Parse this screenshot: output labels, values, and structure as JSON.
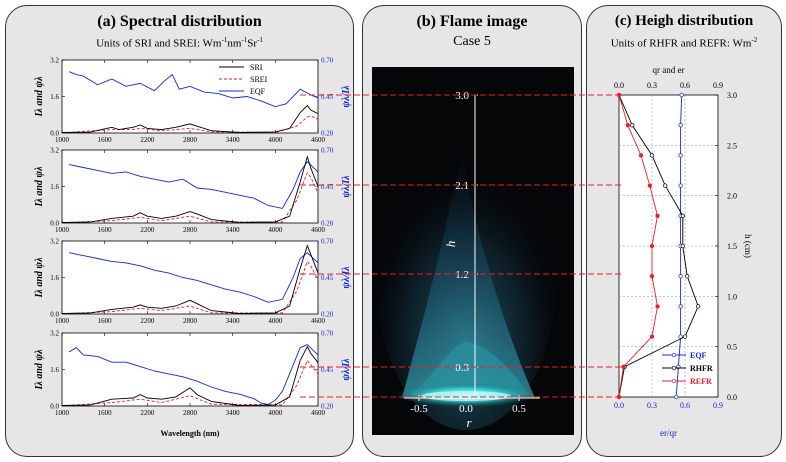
{
  "panel_a": {
    "title": "(a) Spectral distribution",
    "subtitle_parts": [
      "Units of SRI and SREI: Wm",
      "-1",
      "nm",
      "-1",
      "Sr",
      "-1"
    ],
    "ylabel_left": "Iλ and ψλ",
    "ylabel_right": "ψλ/Iλ",
    "xlabel": "Wavelength (nm)"
  },
  "panel_b": {
    "title": "(b) Flame image",
    "subtitle": "Case 5",
    "h_label": "h",
    "r_label": "r"
  },
  "panel_c": {
    "title": "(c) Heigh distribution",
    "subtitle_parts": [
      "Units of RHFR and REFR: Wm",
      "-2"
    ],
    "top_axis_label": "qr and er",
    "bottom_axis_label": "er/qr",
    "right_axis_label": "h (cm)"
  },
  "colors": {
    "sri": "#000000",
    "srei": "#e8202a",
    "eqf": "#1028d8",
    "refline": "#e8202a",
    "panel": "#e6e6e6",
    "flame": "#40d8d8"
  },
  "chart_data": [
    {
      "type": "line",
      "id": "spectral",
      "x_ticks": [
        1000,
        1600,
        2200,
        2800,
        3400,
        4000,
        4600
      ],
      "xlim": [
        1000,
        4600
      ],
      "ylim_left": [
        0,
        3.2
      ],
      "y_ticks_left": [
        "0.0",
        "1.6",
        "3.2"
      ],
      "ylim_right": [
        0.2,
        0.7
      ],
      "y_ticks_right": [
        "0.20",
        "0.45",
        "0.70"
      ],
      "legend": [
        "SRI",
        "SREI",
        "EQF"
      ],
      "subplots": [
        {
          "sri": [
            [
              1000,
              0.02
            ],
            [
              1400,
              0.04
            ],
            [
              1700,
              0.25
            ],
            [
              1800,
              0.15
            ],
            [
              2000,
              0.25
            ],
            [
              2100,
              0.35
            ],
            [
              2200,
              0.2
            ],
            [
              2400,
              0.15
            ],
            [
              2600,
              0.25
            ],
            [
              2800,
              0.4
            ],
            [
              2900,
              0.3
            ],
            [
              3100,
              0.1
            ],
            [
              3500,
              0.02
            ],
            [
              4000,
              0.05
            ],
            [
              4200,
              0.2
            ],
            [
              4350,
              0.9
            ],
            [
              4450,
              1.2
            ],
            [
              4500,
              1.0
            ],
            [
              4600,
              0.85
            ]
          ],
          "srei": [
            [
              1000,
              0.01
            ],
            [
              1700,
              0.15
            ],
            [
              2000,
              0.15
            ],
            [
              2100,
              0.2
            ],
            [
              2400,
              0.1
            ],
            [
              2800,
              0.2
            ],
            [
              3100,
              0.05
            ],
            [
              4000,
              0.02
            ],
            [
              4300,
              0.3
            ],
            [
              4450,
              0.7
            ],
            [
              4500,
              0.75
            ],
            [
              4600,
              0.6
            ]
          ],
          "eqf": [
            [
              1100,
              0.62
            ],
            [
              1200,
              0.6
            ],
            [
              1300,
              0.59
            ],
            [
              1500,
              0.53
            ],
            [
              1700,
              0.57
            ],
            [
              1900,
              0.52
            ],
            [
              2100,
              0.54
            ],
            [
              2300,
              0.49
            ],
            [
              2450,
              0.56
            ],
            [
              2550,
              0.6
            ],
            [
              2650,
              0.5
            ],
            [
              2800,
              0.52
            ],
            [
              3000,
              0.48
            ],
            [
              3200,
              0.47
            ],
            [
              3400,
              0.44
            ],
            [
              3600,
              0.45
            ],
            [
              3800,
              0.42
            ],
            [
              4000,
              0.38
            ],
            [
              4150,
              0.4
            ],
            [
              4350,
              0.5
            ],
            [
              4500,
              0.46
            ],
            [
              4600,
              0.44
            ]
          ]
        },
        {
          "sri": [
            [
              1000,
              0.02
            ],
            [
              1400,
              0.05
            ],
            [
              1700,
              0.2
            ],
            [
              2000,
              0.3
            ],
            [
              2100,
              0.45
            ],
            [
              2200,
              0.3
            ],
            [
              2400,
              0.2
            ],
            [
              2600,
              0.3
            ],
            [
              2800,
              0.5
            ],
            [
              2900,
              0.4
            ],
            [
              3100,
              0.15
            ],
            [
              3500,
              0.02
            ],
            [
              4000,
              0.05
            ],
            [
              4200,
              0.3
            ],
            [
              4350,
              1.8
            ],
            [
              4450,
              2.9
            ],
            [
              4500,
              2.4
            ],
            [
              4600,
              1.6
            ]
          ],
          "srei": [
            [
              1000,
              0.01
            ],
            [
              1700,
              0.1
            ],
            [
              2100,
              0.25
            ],
            [
              2400,
              0.1
            ],
            [
              2800,
              0.3
            ],
            [
              3100,
              0.05
            ],
            [
              4100,
              0.05
            ],
            [
              4300,
              1.0
            ],
            [
              4450,
              2.2
            ],
            [
              4500,
              2.0
            ],
            [
              4600,
              1.3
            ]
          ],
          "eqf": [
            [
              1100,
              0.6
            ],
            [
              1300,
              0.58
            ],
            [
              1500,
              0.56
            ],
            [
              1700,
              0.54
            ],
            [
              1900,
              0.55
            ],
            [
              2100,
              0.52
            ],
            [
              2300,
              0.5
            ],
            [
              2500,
              0.48
            ],
            [
              2700,
              0.5
            ],
            [
              2900,
              0.44
            ],
            [
              3100,
              0.43
            ],
            [
              3300,
              0.41
            ],
            [
              3500,
              0.39
            ],
            [
              3700,
              0.37
            ],
            [
              3900,
              0.32
            ],
            [
              4100,
              0.3
            ],
            [
              4250,
              0.43
            ],
            [
              4350,
              0.55
            ],
            [
              4450,
              0.62
            ],
            [
              4600,
              0.55
            ]
          ]
        },
        {
          "sri": [
            [
              1000,
              0.02
            ],
            [
              1400,
              0.05
            ],
            [
              1700,
              0.2
            ],
            [
              2000,
              0.3
            ],
            [
              2100,
              0.4
            ],
            [
              2200,
              0.3
            ],
            [
              2400,
              0.25
            ],
            [
              2600,
              0.35
            ],
            [
              2800,
              0.6
            ],
            [
              2900,
              0.45
            ],
            [
              3100,
              0.15
            ],
            [
              3500,
              0.02
            ],
            [
              4000,
              0.05
            ],
            [
              4200,
              0.35
            ],
            [
              4350,
              2.0
            ],
            [
              4450,
              3.0
            ],
            [
              4500,
              2.6
            ],
            [
              4600,
              1.8
            ]
          ],
          "srei": [
            [
              1000,
              0.01
            ],
            [
              1700,
              0.1
            ],
            [
              2100,
              0.25
            ],
            [
              2400,
              0.15
            ],
            [
              2800,
              0.35
            ],
            [
              3100,
              0.05
            ],
            [
              4100,
              0.05
            ],
            [
              4300,
              1.0
            ],
            [
              4450,
              2.3
            ],
            [
              4500,
              2.1
            ],
            [
              4600,
              1.5
            ]
          ],
          "eqf": [
            [
              1100,
              0.62
            ],
            [
              1300,
              0.6
            ],
            [
              1500,
              0.58
            ],
            [
              1700,
              0.56
            ],
            [
              1900,
              0.55
            ],
            [
              2100,
              0.53
            ],
            [
              2300,
              0.5
            ],
            [
              2500,
              0.48
            ],
            [
              2700,
              0.45
            ],
            [
              2900,
              0.43
            ],
            [
              3100,
              0.4
            ],
            [
              3300,
              0.37
            ],
            [
              3500,
              0.35
            ],
            [
              3700,
              0.32
            ],
            [
              3900,
              0.28
            ],
            [
              4100,
              0.3
            ],
            [
              4250,
              0.45
            ],
            [
              4350,
              0.58
            ],
            [
              4450,
              0.62
            ],
            [
              4600,
              0.55
            ]
          ]
        },
        {
          "sri": [
            [
              1000,
              0.02
            ],
            [
              1400,
              0.05
            ],
            [
              1700,
              0.3
            ],
            [
              2000,
              0.35
            ],
            [
              2100,
              0.5
            ],
            [
              2200,
              0.35
            ],
            [
              2400,
              0.3
            ],
            [
              2600,
              0.4
            ],
            [
              2800,
              0.8
            ],
            [
              2900,
              0.5
            ],
            [
              3100,
              0.2
            ],
            [
              3500,
              0.02
            ],
            [
              4000,
              0.05
            ],
            [
              4200,
              0.4
            ],
            [
              4350,
              2.0
            ],
            [
              4450,
              2.6
            ],
            [
              4500,
              2.3
            ],
            [
              4600,
              1.9
            ]
          ],
          "srei": [
            [
              1000,
              0.01
            ],
            [
              1700,
              0.15
            ],
            [
              2100,
              0.3
            ],
            [
              2400,
              0.15
            ],
            [
              2800,
              0.45
            ],
            [
              3100,
              0.08
            ],
            [
              4100,
              0.05
            ],
            [
              4300,
              0.9
            ],
            [
              4450,
              2.0
            ],
            [
              4500,
              1.8
            ],
            [
              4600,
              1.4
            ]
          ],
          "eqf": [
            [
              1100,
              0.57
            ],
            [
              1200,
              0.6
            ],
            [
              1300,
              0.55
            ],
            [
              1500,
              0.54
            ],
            [
              1700,
              0.5
            ],
            [
              1900,
              0.5
            ],
            [
              2100,
              0.47
            ],
            [
              2300,
              0.44
            ],
            [
              2500,
              0.42
            ],
            [
              2700,
              0.4
            ],
            [
              2900,
              0.37
            ],
            [
              3100,
              0.33
            ],
            [
              3300,
              0.3
            ],
            [
              3500,
              0.28
            ],
            [
              3700,
              0.25
            ],
            [
              3800,
              0.22
            ],
            [
              3900,
              0.21
            ],
            [
              4000,
              0.24
            ],
            [
              4100,
              0.3
            ],
            [
              4250,
              0.48
            ],
            [
              4350,
              0.6
            ],
            [
              4450,
              0.62
            ],
            [
              4600,
              0.55
            ]
          ]
        }
      ]
    },
    {
      "type": "line",
      "id": "height",
      "h_ticks": [
        "0.0",
        "0.5",
        "1.0",
        "1.5",
        "2.0",
        "2.5",
        "3.0"
      ],
      "hlim": [
        0,
        3
      ],
      "x_ticks": [
        "0.0",
        "0.3",
        "0.6",
        "0.9"
      ],
      "xlim": [
        0,
        0.9
      ],
      "legend": [
        "EQF",
        "RHFR",
        "REFR"
      ],
      "series": [
        {
          "name": "EQF",
          "points": [
            [
              0.52,
              0.0
            ],
            [
              0.54,
              0.3
            ],
            [
              0.56,
              0.6
            ],
            [
              0.56,
              0.9
            ],
            [
              0.56,
              1.2
            ],
            [
              0.56,
              1.5
            ],
            [
              0.56,
              1.8
            ],
            [
              0.56,
              2.1
            ],
            [
              0.56,
              2.4
            ],
            [
              0.56,
              2.7
            ],
            [
              0.57,
              3.0
            ]
          ]
        },
        {
          "name": "RHFR",
          "points": [
            [
              0.0,
              0.0
            ],
            [
              0.05,
              0.3
            ],
            [
              0.6,
              0.6
            ],
            [
              0.72,
              0.9
            ],
            [
              0.62,
              1.2
            ],
            [
              0.58,
              1.5
            ],
            [
              0.58,
              1.8
            ],
            [
              0.42,
              2.1
            ],
            [
              0.3,
              2.4
            ],
            [
              0.12,
              2.7
            ],
            [
              0.0,
              3.0
            ]
          ]
        },
        {
          "name": "REFR",
          "points": [
            [
              0.0,
              0.0
            ],
            [
              0.04,
              0.3
            ],
            [
              0.3,
              0.6
            ],
            [
              0.35,
              0.9
            ],
            [
              0.3,
              1.2
            ],
            [
              0.3,
              1.5
            ],
            [
              0.35,
              1.8
            ],
            [
              0.28,
              2.1
            ],
            [
              0.2,
              2.4
            ],
            [
              0.08,
              2.7
            ],
            [
              0.0,
              3.0
            ]
          ]
        }
      ]
    }
  ],
  "flame": {
    "h_ticks": [
      "0.3",
      "1.2",
      "2.1",
      "3.0"
    ],
    "r_ticks": [
      "-0.5",
      "0.0",
      "0.5"
    ]
  }
}
